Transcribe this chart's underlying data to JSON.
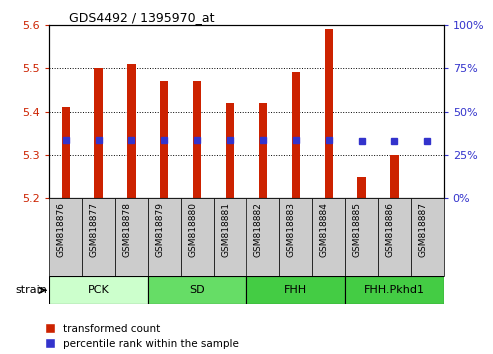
{
  "title": "GDS4492 / 1395970_at",
  "samples": [
    "GSM818876",
    "GSM818877",
    "GSM818878",
    "GSM818879",
    "GSM818880",
    "GSM818881",
    "GSM818882",
    "GSM818883",
    "GSM818884",
    "GSM818885",
    "GSM818886",
    "GSM818887"
  ],
  "transformed_count": [
    5.41,
    5.5,
    5.51,
    5.47,
    5.47,
    5.42,
    5.42,
    5.49,
    5.59,
    5.25,
    5.3,
    5.2
  ],
  "base_value": 5.2,
  "percentile_rank": [
    33.5,
    33.5,
    33.7,
    33.7,
    33.7,
    33.5,
    33.6,
    33.7,
    33.7,
    33.0,
    33.0,
    33.0
  ],
  "groups": [
    {
      "label": "PCK",
      "start": 0,
      "end": 3,
      "color": "#ccffcc"
    },
    {
      "label": "SD",
      "start": 3,
      "end": 6,
      "color": "#66dd66"
    },
    {
      "label": "FHH",
      "start": 6,
      "end": 9,
      "color": "#44cc44"
    },
    {
      "label": "FHH.Pkhd1",
      "start": 9,
      "end": 12,
      "color": "#44cc44"
    }
  ],
  "ylim": [
    5.2,
    5.6
  ],
  "yticks": [
    5.2,
    5.3,
    5.4,
    5.5,
    5.6
  ],
  "y2ticks": [
    0,
    25,
    50,
    75,
    100
  ],
  "y2ticklabels": [
    "0%",
    "25%",
    "50%",
    "75%",
    "100%"
  ],
  "bar_color": "#cc2200",
  "dot_color": "#3333cc",
  "background_color": "#ffffff",
  "label_color_left": "#cc2200",
  "label_color_right": "#3333cc",
  "xtick_bg": "#cccccc",
  "strain_label": "strain",
  "legend_items": [
    "transformed count",
    "percentile rank within the sample"
  ]
}
